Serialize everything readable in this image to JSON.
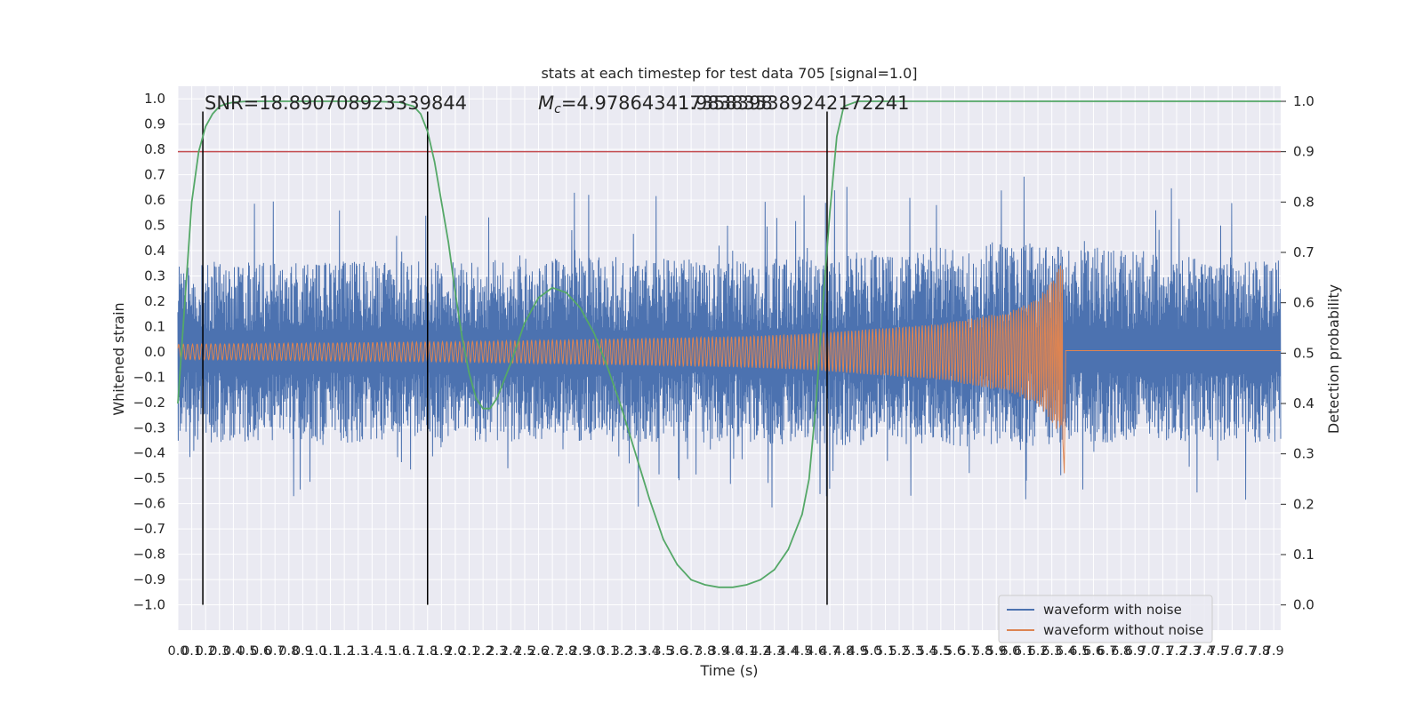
{
  "chart_data": {
    "type": "line",
    "title": "stats at each timestep for test data 705 [signal=1.0]",
    "xlabel": "Time (s)",
    "ylabel": "Whitened strain",
    "y2label": "Detection probability",
    "xlim": [
      0.0,
      7.95
    ],
    "ylim": [
      -1.1,
      1.05
    ],
    "y2lim": [
      -0.05,
      1.03
    ],
    "xticks": [
      0.0,
      0.1,
      0.2,
      0.3,
      0.4,
      0.5,
      0.6,
      0.7,
      0.8,
      0.9,
      1.0,
      1.1,
      1.2,
      1.3,
      1.4,
      1.5,
      1.6,
      1.7,
      1.8,
      1.9,
      2.0,
      2.1,
      2.2,
      2.3,
      2.4,
      2.5,
      2.6,
      2.7,
      2.8,
      2.9,
      3.0,
      3.1,
      3.2,
      3.3,
      3.4,
      3.5,
      3.6,
      3.7,
      3.8,
      3.9,
      4.0,
      4.1,
      4.2,
      4.3,
      4.4,
      4.5,
      4.6,
      4.7,
      4.8,
      4.9,
      5.0,
      5.1,
      5.2,
      5.3,
      5.4,
      5.5,
      5.6,
      5.7,
      5.8,
      5.9,
      6.0,
      6.1,
      6.2,
      6.3,
      6.4,
      6.5,
      6.6,
      6.7,
      6.8,
      6.9,
      7.0,
      7.1,
      7.2,
      7.3,
      7.4,
      7.5,
      7.6,
      7.7,
      7.8,
      7.9
    ],
    "yticks": [
      -1.0,
      -0.9,
      -0.8,
      -0.7,
      -0.6,
      -0.5,
      -0.4,
      -0.3,
      -0.2,
      -0.1,
      0.0,
      0.1,
      0.2,
      0.3,
      0.4,
      0.5,
      0.6,
      0.7,
      0.8,
      0.9,
      1.0
    ],
    "y2ticks": [
      0.0,
      0.1,
      0.2,
      0.3,
      0.4,
      0.5,
      0.6,
      0.7,
      0.8,
      0.9,
      1.0
    ],
    "grid": true,
    "legend_position": "bottom-right",
    "annotations": {
      "snr": "SNR=18.890708923339844",
      "mc_prefix": "M",
      "mc_sub": "c",
      "mc_value": "=4.978643417358398",
      "overlap": "1.983835389242172241"
    },
    "series": [
      {
        "name": "waveform with noise",
        "color": "#4c72b0",
        "kind": "noise",
        "envelope_x": [
          0.0,
          1.0,
          2.0,
          3.0,
          4.0,
          5.0,
          6.0,
          7.0,
          7.95
        ],
        "envelope_upper": [
          0.45,
          0.45,
          0.45,
          0.47,
          0.45,
          0.5,
          0.55,
          0.5,
          0.45
        ],
        "envelope_lower": [
          -0.45,
          -0.45,
          -0.45,
          -0.45,
          -0.45,
          -0.47,
          -0.47,
          -0.45,
          -0.45
        ]
      },
      {
        "name": "waveform without noise",
        "color": "#dd8452",
        "kind": "chirp",
        "x": [
          0.0,
          1.0,
          2.0,
          3.0,
          4.0,
          4.5,
          5.0,
          5.5,
          6.0,
          6.2,
          6.3,
          6.38,
          6.4,
          7.95
        ],
        "amplitude": [
          0.03,
          0.035,
          0.04,
          0.05,
          0.06,
          0.07,
          0.09,
          0.11,
          0.16,
          0.21,
          0.28,
          0.36,
          0.0,
          0.0
        ],
        "post_merger_value": 0.005
      },
      {
        "name": "detection probability",
        "color": "#55a868",
        "axis": "right",
        "x": [
          0.0,
          0.05,
          0.1,
          0.15,
          0.2,
          0.25,
          0.3,
          0.35,
          0.4,
          0.5,
          0.6,
          0.8,
          1.0,
          1.2,
          1.4,
          1.6,
          1.7,
          1.75,
          1.8,
          1.85,
          1.9,
          1.95,
          2.0,
          2.05,
          2.1,
          2.15,
          2.2,
          2.25,
          2.3,
          2.4,
          2.5,
          2.6,
          2.7,
          2.8,
          2.9,
          3.0,
          3.1,
          3.2,
          3.3,
          3.4,
          3.5,
          3.6,
          3.7,
          3.8,
          3.9,
          4.0,
          4.1,
          4.2,
          4.3,
          4.4,
          4.5,
          4.55,
          4.6,
          4.65,
          4.7,
          4.75,
          4.8,
          4.9,
          5.0,
          6.0,
          7.0,
          7.95
        ],
        "values": [
          0.4,
          0.6,
          0.8,
          0.9,
          0.95,
          0.975,
          0.99,
          0.995,
          0.998,
          1.0,
          1.0,
          1.0,
          1.0,
          1.0,
          1.0,
          0.998,
          0.99,
          0.975,
          0.94,
          0.88,
          0.8,
          0.72,
          0.62,
          0.53,
          0.46,
          0.41,
          0.39,
          0.39,
          0.41,
          0.48,
          0.56,
          0.61,
          0.63,
          0.62,
          0.59,
          0.54,
          0.47,
          0.39,
          0.3,
          0.21,
          0.13,
          0.08,
          0.05,
          0.04,
          0.035,
          0.035,
          0.04,
          0.05,
          0.07,
          0.11,
          0.18,
          0.25,
          0.4,
          0.6,
          0.78,
          0.93,
          0.99,
          1.0,
          1.0,
          1.0,
          1.0,
          1.0
        ]
      },
      {
        "name": "threshold",
        "color": "#c44e52",
        "axis": "right",
        "value": 0.9
      },
      {
        "name": "event markers",
        "color": "#000000",
        "x": [
          0.18,
          1.8,
          4.68
        ],
        "y_range": [
          -1.0,
          0.95
        ]
      }
    ]
  }
}
